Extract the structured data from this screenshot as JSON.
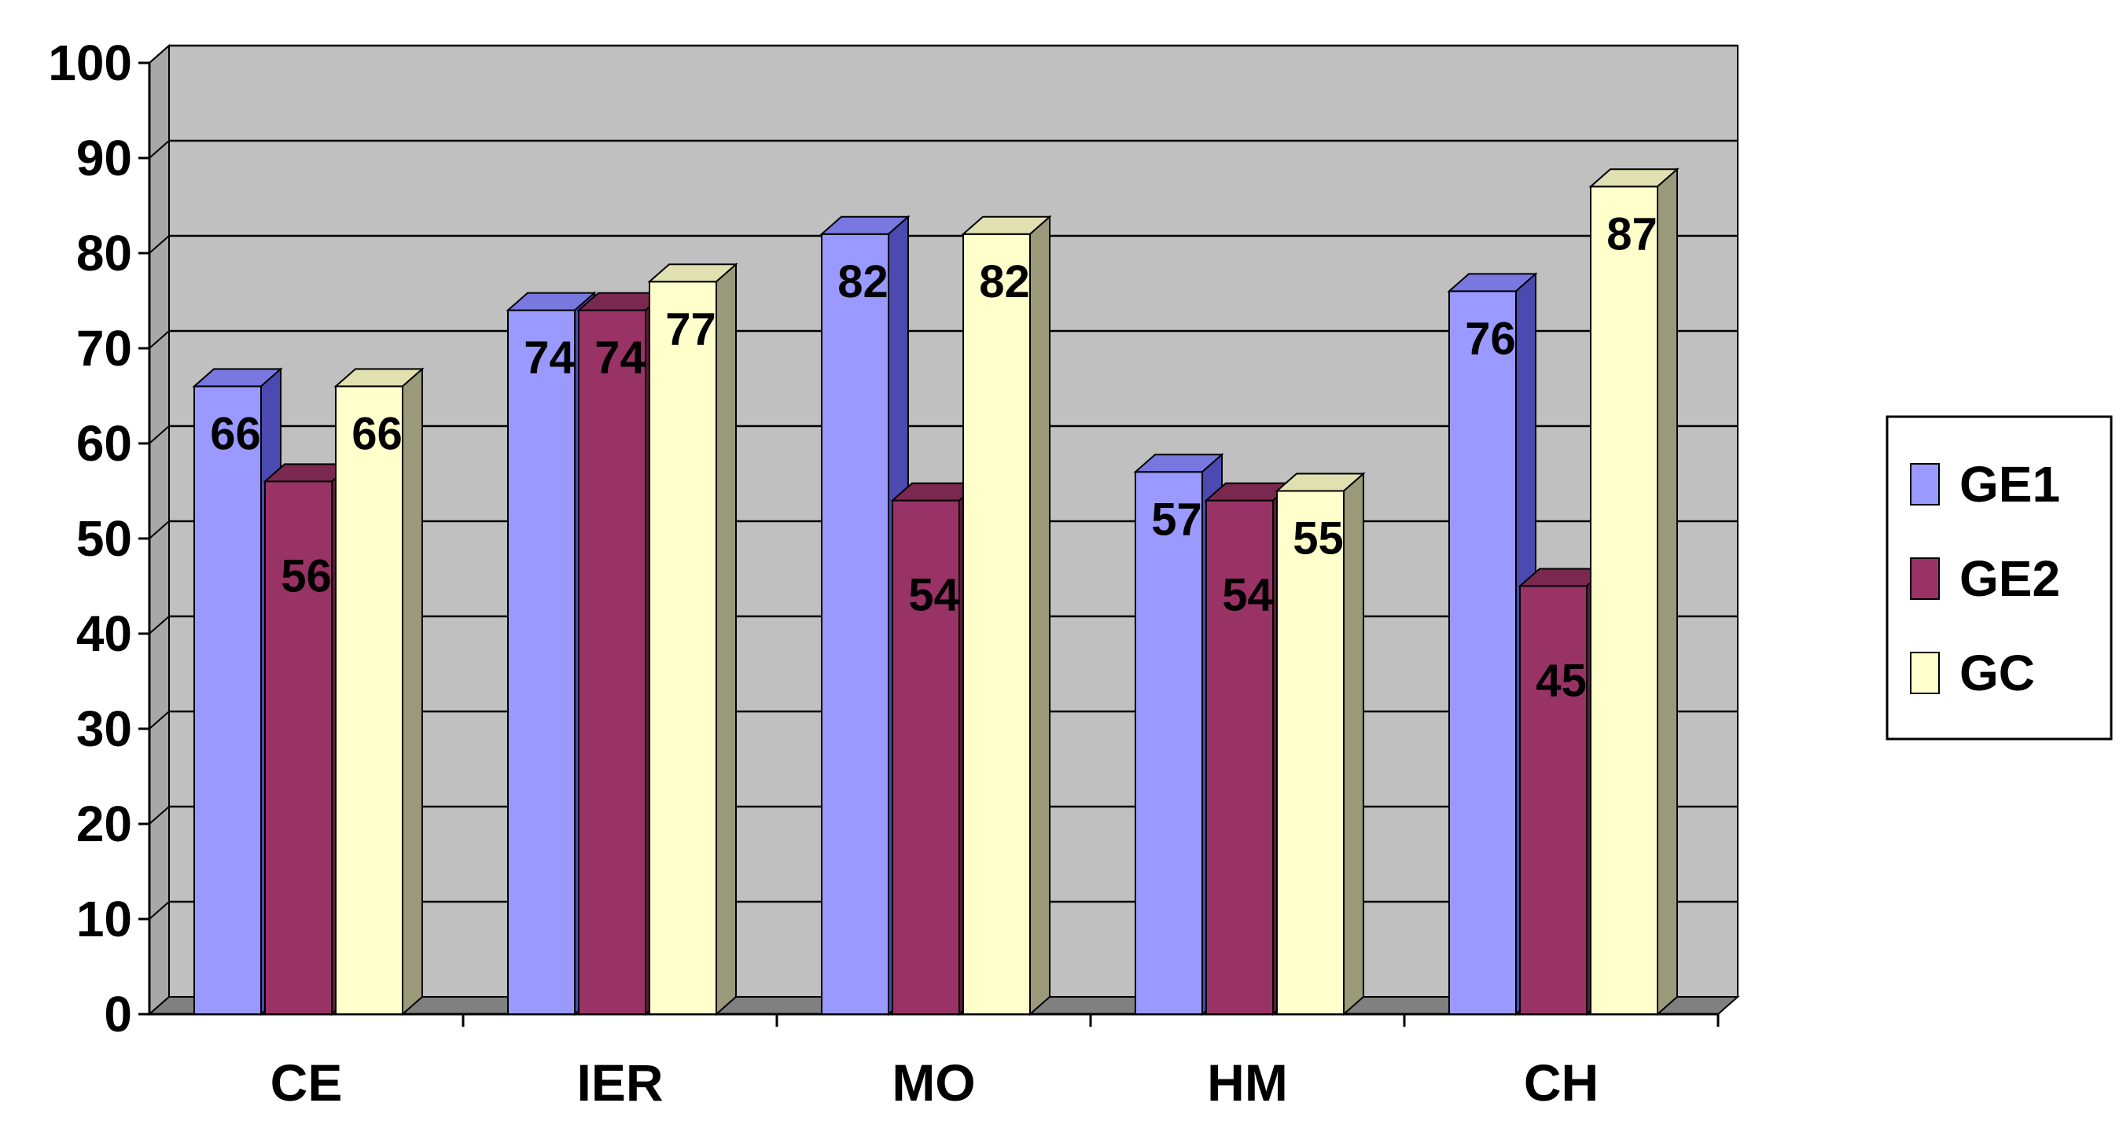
{
  "chart_data": {
    "type": "bar",
    "title": "",
    "xlabel": "",
    "ylabel": "",
    "categories": [
      "CE",
      "IER",
      "MO",
      "HM",
      "CH"
    ],
    "series": [
      {
        "name": "GE1",
        "values": [
          66,
          74,
          82,
          57,
          76
        ],
        "color": "#9999ff",
        "side_color": "#4a4ab0",
        "top_color": "#7878e0"
      },
      {
        "name": "GE2",
        "values": [
          56,
          74,
          54,
          54,
          45
        ],
        "color": "#993366",
        "side_color": "#5a1c3a",
        "top_color": "#7a2850"
      },
      {
        "name": "GC",
        "values": [
          66,
          77,
          82,
          55,
          87
        ],
        "color": "#ffffcc",
        "side_color": "#9a9a7a",
        "top_color": "#e0e0b0"
      }
    ],
    "data_labels": [
      [
        "66",
        "74",
        "82",
        "57",
        "76"
      ],
      [
        "56",
        "74",
        "54",
        "54",
        "45"
      ],
      [
        "66",
        "77",
        "82",
        "55",
        "87"
      ]
    ],
    "ylim": [
      0,
      100
    ],
    "yticks": [
      "0",
      "10",
      "20",
      "30",
      "40",
      "50",
      "60",
      "70",
      "80",
      "90",
      "100"
    ],
    "grid": true,
    "three_d": true,
    "wall_color": "#c0c0c0",
    "legend_position": "right"
  }
}
